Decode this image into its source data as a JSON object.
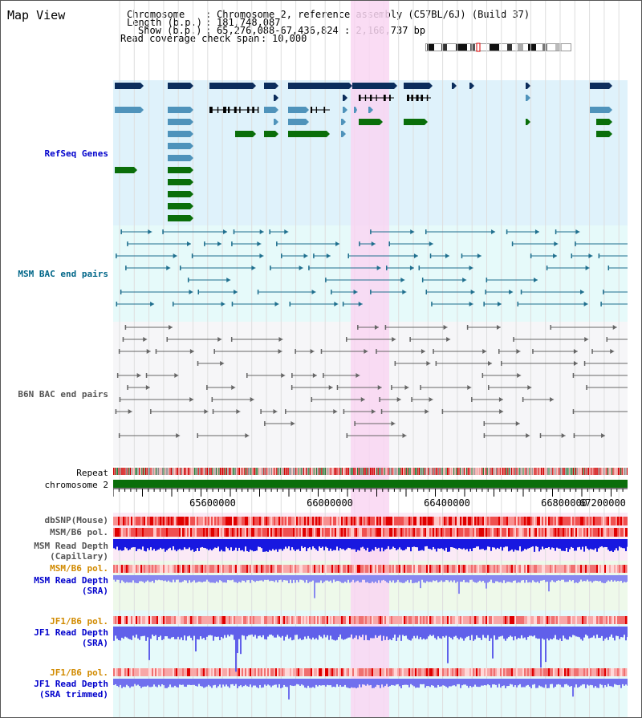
{
  "title": "Map View",
  "header": {
    "chromosome_key": "Chromosome",
    "chromosome_val": "Chromosome 2, reference assembly (C57BL/6J) (Build 37)",
    "length_key": "Length (b.p.)",
    "length_val": "181,748,087",
    "show_key": "Show (b.p.)",
    "show_val": "65,276,088-67,436,824 : 2,160,737 bp",
    "coverage_key": "Read coverage check span",
    "coverage_val": "10,000"
  },
  "tracks": {
    "refseq": "RefSeq Genes",
    "msm_bac": "MSM BAC end pairs",
    "b6n_bac": "B6N BAC end pairs",
    "repeat": "Repeat",
    "chromosome": "chromosome 2",
    "dbsnp": "dbSNP(Mouse)",
    "msm_b6_pol_1": "MSM/B6 pol.",
    "msm_depth_cap_1": "MSM Read Depth",
    "msm_depth_cap_2": "(Capillary)",
    "msm_b6_pol_2": "MSM/B6 pol.",
    "msm_depth_sra_1": "MSM Read Depth",
    "msm_depth_sra_2": "(SRA)",
    "jf1_b6_pol_1": "JF1/B6 pol.",
    "jf1_depth_sra_1": "JF1 Read Depth",
    "jf1_depth_sra_2": "(SRA)",
    "jf1_b6_pol_2": "JF1/B6 pol.",
    "jf1_depth_trim_1": "JF1 Read Depth",
    "jf1_depth_trim_2": "(SRA trimmed)"
  },
  "axis": {
    "ticks": [
      "65600000",
      "66000000",
      "66400000",
      "66800000",
      "67200000"
    ]
  },
  "colors": {
    "refseq_bg": "#dff2fb",
    "msm_bg": "#e6fafa",
    "b6n_bg": "#f6f6f8",
    "highlight": "#f9d6f2",
    "gene_dark": "#0c2d5c",
    "gene_mid": "#4f93bb",
    "gene_green": "#0a6e0a",
    "msm_pair": "#1f6f8e",
    "b6n_pair": "#666666",
    "depth_blue": "#2020e6",
    "depth_light": "#8080f0",
    "label_blue": "#0000cc",
    "label_teal": "#006688",
    "label_gray": "#555555",
    "label_orange": "#d18a00"
  }
}
